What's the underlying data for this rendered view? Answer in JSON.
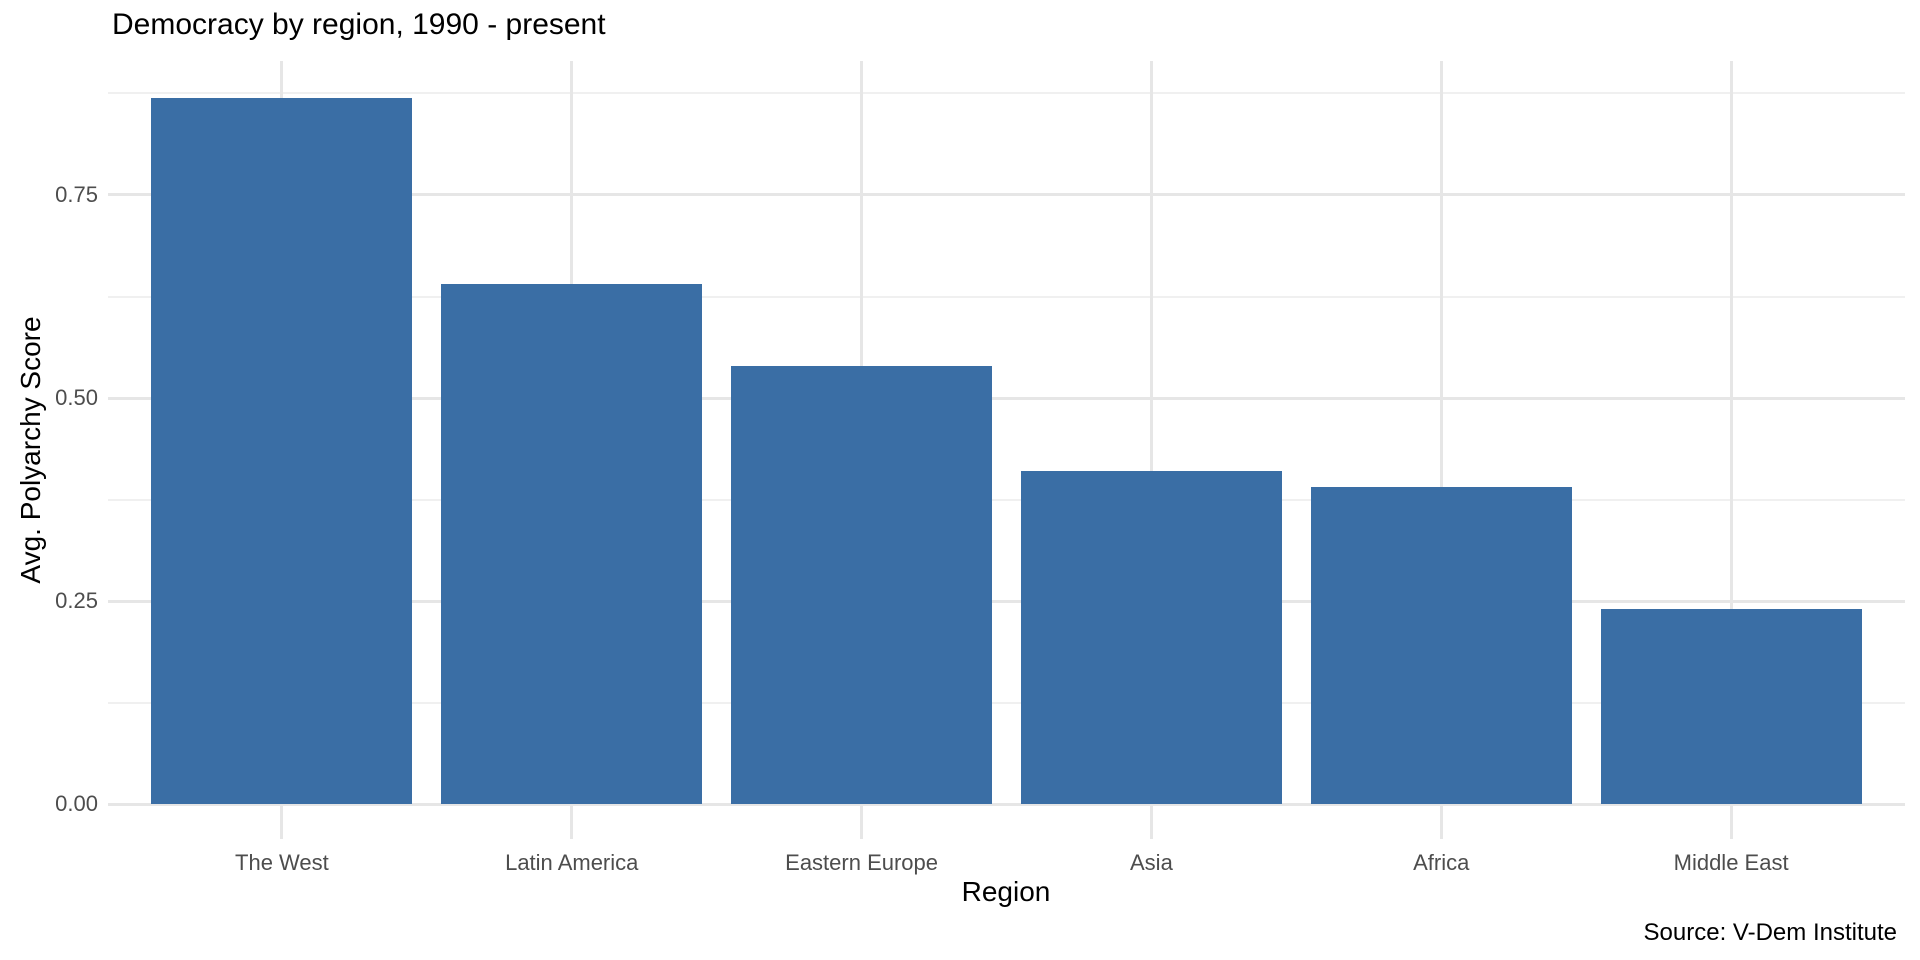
{
  "chart_data": {
    "type": "bar",
    "title": "Democracy by region, 1990 - present",
    "xlabel": "Region",
    "ylabel": "Avg. Polyarchy Score",
    "source": "Source: V-Dem Institute",
    "categories": [
      "The West",
      "Latin America",
      "Eastern Europe",
      "Asia",
      "Africa",
      "Middle East"
    ],
    "values": [
      0.87,
      0.64,
      0.54,
      0.41,
      0.39,
      0.24
    ],
    "y_ticks": [
      0,
      0.25,
      0.5,
      0.75
    ],
    "y_tick_labels": [
      "0.00",
      "0.25",
      "0.50",
      "0.75"
    ],
    "y_minor_ticks": [
      0.125,
      0.375,
      0.625,
      0.875
    ],
    "colors": {
      "bar_fill": "#3A6EA5",
      "grid_major": "#E6E6E6",
      "grid_minor": "#F0F0F0",
      "tick_label": "#4D4D4D",
      "text": "#000000"
    },
    "layout": {
      "ylim": [
        -0.043,
        0.915
      ],
      "bar_rel_width": 0.9,
      "x_expand": 0.6,
      "grid": "horizontal major+minor, vertical major at category centers",
      "legend": "none",
      "background": "#FFFFFF"
    }
  }
}
